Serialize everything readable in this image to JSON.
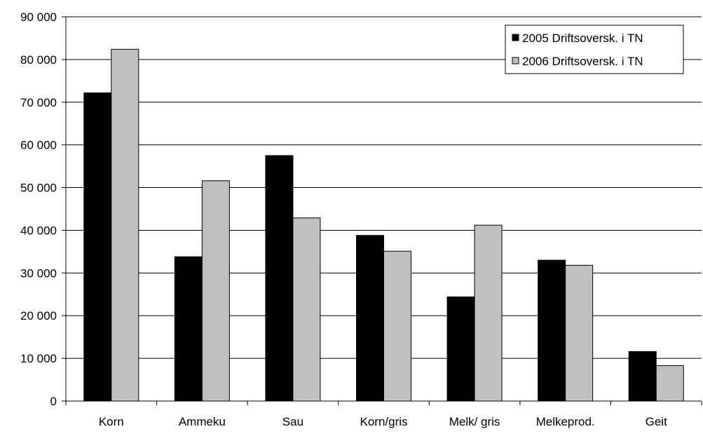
{
  "chart_data": {
    "type": "bar",
    "categories": [
      "Korn",
      "Ammeku",
      "Sau",
      "Korn/gris",
      "Melk/ gris",
      "Melkeprod.",
      "Geit"
    ],
    "series": [
      {
        "name": "2005 Driftsoversk. i TN",
        "color": "#000000",
        "values": [
          72200,
          33800,
          57500,
          38800,
          24400,
          33000,
          11600
        ]
      },
      {
        "name": "2006 Driftsoversk. i TN",
        "color": "#c0c0c0",
        "values": [
          82400,
          51600,
          42900,
          35100,
          41200,
          31800,
          8300
        ]
      }
    ],
    "ylim": [
      0,
      90000
    ],
    "yticks": [
      0,
      10000,
      20000,
      30000,
      40000,
      50000,
      60000,
      70000,
      80000,
      90000
    ],
    "ytick_labels": [
      "0",
      "10 000",
      "20 000",
      "30 000",
      "40 000",
      "50 000",
      "60 000",
      "70 000",
      "80 000",
      "90 000"
    ],
    "grid": "horizontal",
    "legend_position": "top-right",
    "title": "",
    "xlabel": "",
    "ylabel": ""
  }
}
